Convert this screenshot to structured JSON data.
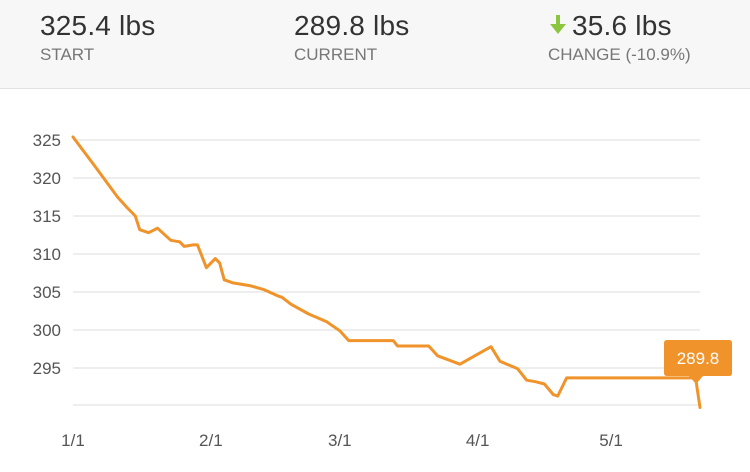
{
  "stats": {
    "start": {
      "value": "325.4 lbs",
      "label": "START"
    },
    "current": {
      "value": "289.8 lbs",
      "label": "CURRENT"
    },
    "change": {
      "value": "35.6 lbs",
      "label": "CHANGE (-10.9%)",
      "direction_icon": "arrow-down-icon",
      "icon_color": "#8cc63f"
    }
  },
  "colors": {
    "line": "#f0932b",
    "tooltip_bg": "#f0932b",
    "grid": "#dddddd"
  },
  "chart_data": {
    "type": "line",
    "title": "",
    "xlabel": "",
    "ylabel": "",
    "x_tick_labels": [
      "1/1",
      "2/1",
      "3/1",
      "4/1",
      "5/1"
    ],
    "y_ticks": [
      325,
      320,
      315,
      310,
      305,
      300,
      295
    ],
    "ylim": [
      290,
      328
    ],
    "xlim": [
      "2024-01-01",
      "2024-05-21"
    ],
    "grid": true,
    "series": [
      {
        "points": [
          [
            "2024-01-01",
            325.4
          ],
          [
            "2024-01-06",
            321.5
          ],
          [
            "2024-01-11",
            317.5
          ],
          [
            "2024-01-13",
            316.2
          ],
          [
            "2024-01-15",
            315.0
          ],
          [
            "2024-01-16",
            313.2
          ],
          [
            "2024-01-18",
            312.8
          ],
          [
            "2024-01-20",
            313.4
          ],
          [
            "2024-01-23",
            311.8
          ],
          [
            "2024-01-25",
            311.6
          ],
          [
            "2024-01-26",
            311.0
          ],
          [
            "2024-01-28",
            311.2
          ],
          [
            "2024-01-29",
            311.2
          ],
          [
            "2024-01-31",
            308.2
          ],
          [
            "2024-02-02",
            309.4
          ],
          [
            "2024-02-03",
            308.8
          ],
          [
            "2024-02-04",
            306.6
          ],
          [
            "2024-02-06",
            306.2
          ],
          [
            "2024-02-10",
            305.8
          ],
          [
            "2024-02-13",
            305.3
          ],
          [
            "2024-02-16",
            304.5
          ],
          [
            "2024-02-17",
            304.3
          ],
          [
            "2024-02-19",
            303.4
          ],
          [
            "2024-02-23",
            302.1
          ],
          [
            "2024-02-27",
            301.1
          ],
          [
            "2024-03-01",
            299.9
          ],
          [
            "2024-03-03",
            298.6
          ],
          [
            "2024-03-13",
            298.6
          ],
          [
            "2024-03-14",
            297.9
          ],
          [
            "2024-03-21",
            297.9
          ],
          [
            "2024-03-23",
            296.6
          ],
          [
            "2024-03-28",
            295.5
          ],
          [
            "2024-04-04",
            297.8
          ],
          [
            "2024-04-06",
            295.9
          ],
          [
            "2024-04-10",
            294.9
          ],
          [
            "2024-04-12",
            293.4
          ],
          [
            "2024-04-14",
            293.2
          ],
          [
            "2024-04-16",
            292.9
          ],
          [
            "2024-04-18",
            291.5
          ],
          [
            "2024-04-19",
            291.3
          ],
          [
            "2024-04-21",
            293.7
          ],
          [
            "2024-05-20",
            293.7
          ],
          [
            "2024-05-21",
            289.8
          ]
        ]
      }
    ],
    "annotation": {
      "x": "2024-05-21",
      "y": 289.8,
      "label": "289.8"
    }
  }
}
